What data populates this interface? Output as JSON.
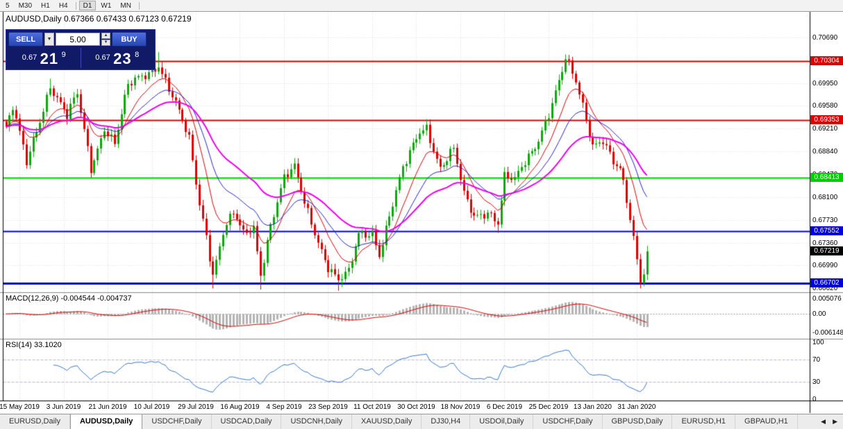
{
  "toolbar": {
    "timeframes": [
      {
        "label": "5"
      },
      {
        "label": "M30"
      },
      {
        "label": "H1"
      },
      {
        "label": "H4",
        "sep_after": true
      },
      {
        "label": "D1",
        "active": true
      },
      {
        "label": "W1"
      },
      {
        "label": "MN",
        "sep_after": true
      }
    ]
  },
  "chart": {
    "title": "AUDUSD,Daily 0.67366 0.67433 0.67123 0.67219",
    "symbol": "AUDUSD",
    "period": "Daily",
    "ohlc": {
      "open": "0.67366",
      "high": "0.67433",
      "low": "0.67123",
      "close": "0.67219"
    }
  },
  "trade_panel": {
    "sell_label": "SELL",
    "buy_label": "BUY",
    "volume": "5.00",
    "sell_price": {
      "base": "0.67",
      "big": "21",
      "sup": "9",
      "value": "0.67219"
    },
    "buy_price": {
      "base": "0.67",
      "big": "23",
      "sup": "8",
      "value": "0.67238"
    }
  },
  "price_scale": {
    "labels": [
      "0.70690",
      "0.70320",
      "0.69950",
      "0.69580",
      "0.69210",
      "0.68840",
      "0.68470",
      "0.68100",
      "0.67730",
      "0.67360",
      "0.66990",
      "0.66620"
    ]
  },
  "macd_panel": {
    "label": "MACD(12,26,9) -0.004544 -0.004737",
    "axis": [
      "0.005076",
      "0.00",
      "-0.006148"
    ]
  },
  "rsi_panel": {
    "label": "RSI(14) 33.1020",
    "axis": [
      "100",
      "70",
      "30",
      "0"
    ]
  },
  "tabs": {
    "arrow_left": "◀",
    "arrow_right": "▶",
    "items": [
      {
        "label": "EURUSD,Daily"
      },
      {
        "label": "AUDUSD,Daily",
        "active": true
      },
      {
        "label": "USDCHF,Daily"
      },
      {
        "label": "USDCAD,Daily"
      },
      {
        "label": "USDCNH,Daily"
      },
      {
        "label": "XAUUSD,Daily"
      },
      {
        "label": "DJ30,H4"
      },
      {
        "label": "USDOil,Daily"
      },
      {
        "label": "USDCHF,Daily"
      },
      {
        "label": "GBPUSD,Daily"
      },
      {
        "label": "EURUSD,H1"
      },
      {
        "label": "GBPAUD,H1"
      }
    ]
  },
  "chart_data": {
    "type": "candlestick",
    "symbol": "AUDUSD",
    "timeframe": "Daily",
    "candle_count": 190,
    "price_axis": {
      "top": 0.71104,
      "bottom": 0.66579
    },
    "close_anchors": [
      [
        0,
        0.692
      ],
      [
        2,
        0.6952
      ],
      [
        6,
        0.6862
      ],
      [
        13,
        0.6996
      ],
      [
        18,
        0.6938
      ],
      [
        21,
        0.6972
      ],
      [
        25,
        0.6858
      ],
      [
        29,
        0.6928
      ],
      [
        32,
        0.6898
      ],
      [
        36,
        0.6985
      ],
      [
        45,
        0.703
      ],
      [
        50,
        0.6958
      ],
      [
        54,
        0.6898
      ],
      [
        57,
        0.68
      ],
      [
        59,
        0.6752
      ],
      [
        61,
        0.669
      ],
      [
        64,
        0.6755
      ],
      [
        67,
        0.678
      ],
      [
        70,
        0.6745
      ],
      [
        73,
        0.676
      ],
      [
        75,
        0.669
      ],
      [
        78,
        0.677
      ],
      [
        82,
        0.6838
      ],
      [
        85,
        0.6852
      ],
      [
        88,
        0.68
      ],
      [
        91,
        0.6758
      ],
      [
        95,
        0.67
      ],
      [
        98,
        0.6672
      ],
      [
        101,
        0.6682
      ],
      [
        104,
        0.6748
      ],
      [
        108,
        0.6758
      ],
      [
        110,
        0.6722
      ],
      [
        113,
        0.6778
      ],
      [
        117,
        0.685
      ],
      [
        122,
        0.692
      ],
      [
        124,
        0.6928
      ],
      [
        128,
        0.6858
      ],
      [
        132,
        0.6882
      ],
      [
        135,
        0.681
      ],
      [
        138,
        0.6782
      ],
      [
        142,
        0.6792
      ],
      [
        145,
        0.6768
      ],
      [
        147,
        0.6838
      ],
      [
        150,
        0.6832
      ],
      [
        153,
        0.6868
      ],
      [
        156,
        0.6898
      ],
      [
        160,
        0.6948
      ],
      [
        163,
        0.6992
      ],
      [
        165,
        0.7028
      ],
      [
        168,
        0.6995
      ],
      [
        170,
        0.696
      ],
      [
        173,
        0.69
      ],
      [
        176,
        0.6906
      ],
      [
        179,
        0.6862
      ],
      [
        181,
        0.6848
      ],
      [
        183,
        0.68
      ],
      [
        185,
        0.6742
      ],
      [
        186,
        0.671
      ],
      [
        187,
        0.6678
      ],
      [
        188,
        0.6696
      ],
      [
        189,
        0.67219
      ]
    ],
    "wick_events": {
      "highs": [
        [
          13,
          0.7002
        ],
        [
          44,
          0.7038
        ],
        [
          45,
          0.7045
        ],
        [
          165,
          0.704
        ],
        [
          166,
          0.7032
        ]
      ],
      "lows": [
        [
          61,
          0.6662
        ],
        [
          75,
          0.666
        ],
        [
          98,
          0.6658
        ],
        [
          99,
          0.6664
        ],
        [
          145,
          0.6752
        ],
        [
          187,
          0.6662
        ]
      ]
    },
    "last_close": 0.67219,
    "up_color": "#0ca80c",
    "down_color": "#e00000",
    "horizontal_lines": [
      {
        "price": 0.70304,
        "label": "0.70304",
        "color": "#dd0000",
        "width": 2
      },
      {
        "price": 0.69353,
        "label": "0.69353",
        "color": "#dd0000",
        "width": 2
      },
      {
        "price": 0.68413,
        "label": "0.68413",
        "color": "#00cc00",
        "width": 2
      },
      {
        "price": 0.67552,
        "label": "0.67552",
        "color": "#0000dd",
        "width": 2
      },
      {
        "price": 0.66702,
        "label": "0.66702",
        "color": "#0000dd",
        "width": 3
      }
    ],
    "current_price": {
      "value": 0.67219,
      "label": "0.67219",
      "box_color": "#000000"
    },
    "moving_averages": [
      {
        "period": 10,
        "color": "#dd0000",
        "width": 1
      },
      {
        "period": 20,
        "color": "#2222cc",
        "width": 1
      },
      {
        "period": 40,
        "color": "#ee00ee",
        "width": 2
      }
    ],
    "macd": {
      "fast": 12,
      "slow": 26,
      "signal": 9,
      "value": -0.004544,
      "signal_value": -0.004737,
      "range": {
        "top": 0.0062,
        "bottom": -0.0075
      },
      "hist_color": "#b4b4b4",
      "signal_color": "#dd0000"
    },
    "rsi": {
      "period": 14,
      "value": 33.102,
      "color": "#3377cc",
      "levels": [
        30,
        70
      ]
    },
    "date_axis": {
      "first_tick_candle": 4,
      "tick_step": 13,
      "labels": [
        "15 May 2019",
        "3 Jun 2019",
        "21 Jun 2019",
        "10 Jul 2019",
        "29 Jul 2019",
        "16 Aug 2019",
        "4 Sep 2019",
        "23 Sep 2019",
        "11 Oct 2019",
        "30 Oct 2019",
        "18 Nov 2019",
        "6 Dec 2019",
        "25 Dec 2019",
        "13 Jan 2020",
        "31 Jan 2020"
      ]
    }
  }
}
